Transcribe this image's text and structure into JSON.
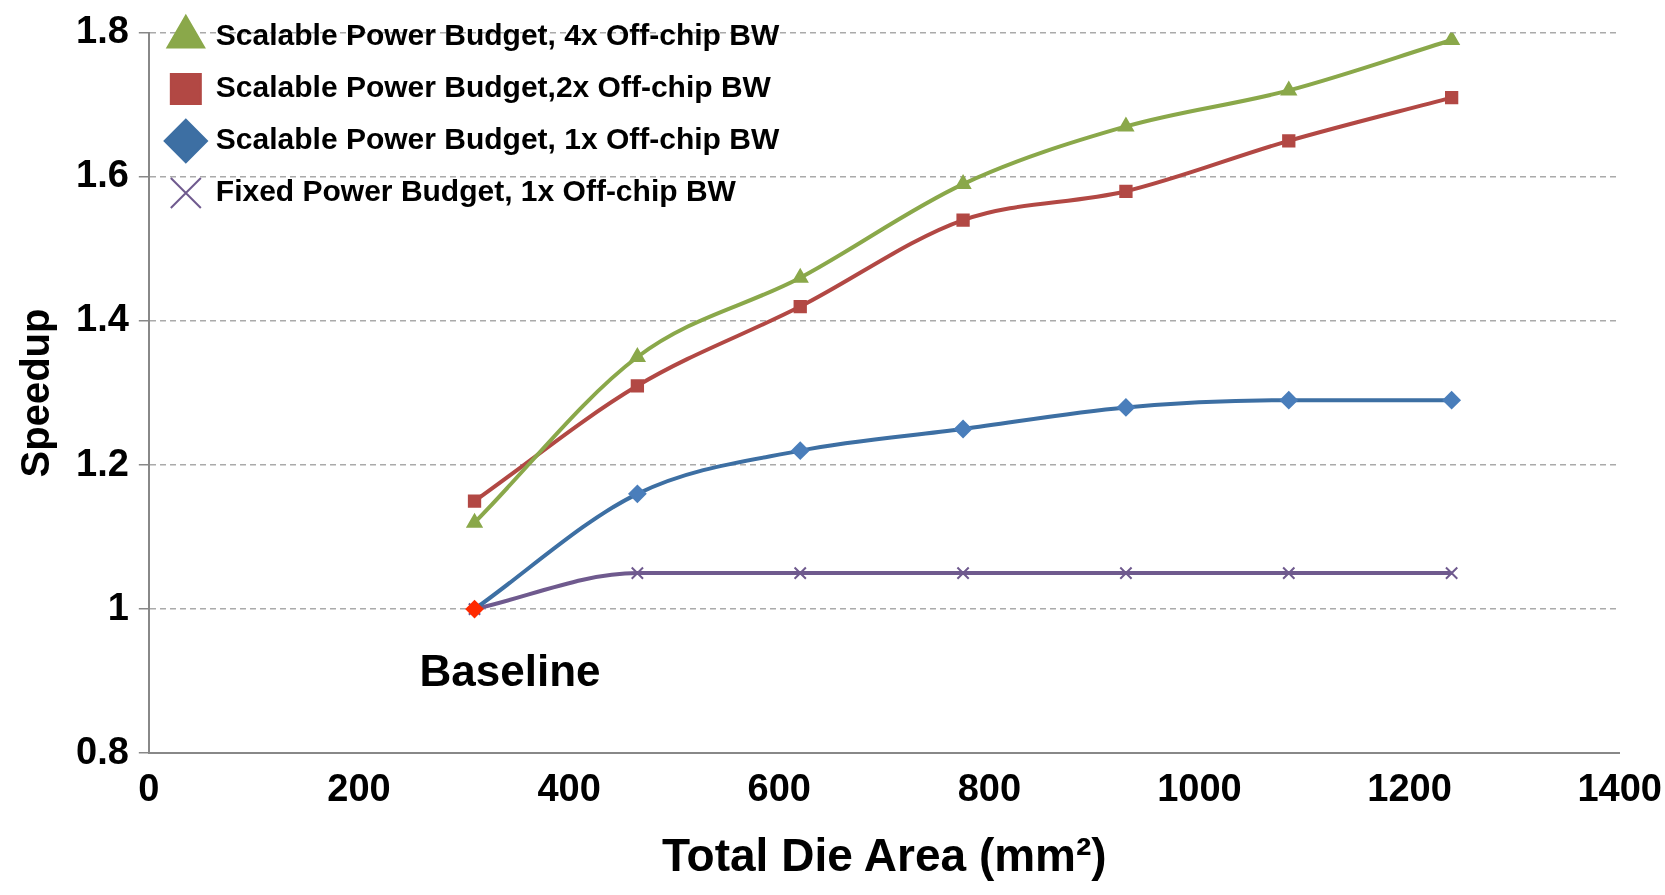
{
  "chart_data": {
    "type": "line",
    "xlabel": "Total Die Area (mm²)",
    "ylabel": "Speedup",
    "x": [
      310,
      465,
      620,
      775,
      930,
      1085,
      1240
    ],
    "series": [
      {
        "name": "Scalable Power Budget, 4x Off-chip BW",
        "color": "#8aa84a",
        "marker": "triangle",
        "values": [
          1.12,
          1.35,
          1.46,
          1.59,
          1.67,
          1.72,
          1.79
        ]
      },
      {
        "name": "Scalable Power Budget,2x Off-chip BW",
        "color": "#b24844",
        "marker": "square",
        "values": [
          1.15,
          1.31,
          1.42,
          1.54,
          1.58,
          1.65,
          1.71
        ]
      },
      {
        "name": "Scalable Power Budget, 1x Off-chip BW",
        "color": "#3d6fa3",
        "marker": "diamond",
        "colors": [
          "#ff2a00",
          "#4a7ebb",
          "#4a7ebb",
          "#4a7ebb",
          "#4a7ebb",
          "#4a7ebb",
          "#4a7ebb"
        ],
        "values": [
          1.0,
          1.16,
          1.22,
          1.25,
          1.28,
          1.29,
          1.29
        ]
      },
      {
        "name": "Fixed Power Budget, 1x Off-chip BW",
        "color": "#6f5a8e",
        "marker": "cross",
        "values": [
          1.0,
          1.05,
          1.05,
          1.05,
          1.05,
          1.05,
          1.05
        ]
      }
    ],
    "xlim": [
      0,
      1400
    ],
    "xticks": [
      0,
      200,
      400,
      600,
      800,
      1000,
      1200,
      1400
    ],
    "ylim": [
      0.8,
      1.8
    ],
    "yticks": [
      0.8,
      1,
      1.2,
      1.4,
      1.6,
      1.8
    ],
    "grid": "y",
    "legend": "top left",
    "annotations": [
      {
        "text": "Baseline",
        "x": 310,
        "y": 1
      }
    ]
  }
}
